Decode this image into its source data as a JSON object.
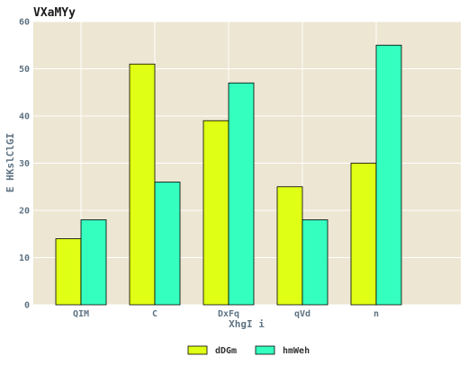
{
  "chart_data": {
    "type": "bar",
    "title": "VXaMYy",
    "xlabel": "XhgI i",
    "ylabel": "E HKslClGI",
    "categories": [
      "QIM",
      "C",
      "DxFq",
      "qVd",
      "n"
    ],
    "series": [
      {
        "name": "dDGm",
        "values": [
          14,
          51,
          39,
          25,
          30
        ],
        "color": "#dfff14"
      },
      {
        "name": "hmWeh",
        "values": [
          18,
          26,
          47,
          18,
          55
        ],
        "color": "#35ffbf"
      }
    ],
    "ylim": [
      0,
      60
    ],
    "yticks": [
      0,
      10,
      20,
      30,
      40,
      50,
      60
    ],
    "grid": true,
    "legend_position": "bottom-center",
    "background_color": "#ede6d2"
  }
}
